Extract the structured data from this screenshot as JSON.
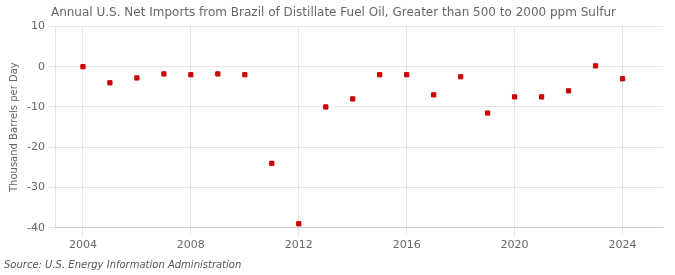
{
  "chart_data": {
    "type": "scatter",
    "title": "Annual U.S. Net Imports from Brazil of Distillate Fuel Oil, Greater than 500 to 2000 ppm Sulfur",
    "ylabel": "Thousand Barrels per Day",
    "source": "Source: U.S. Energy Information Administration",
    "x": [
      2004,
      2005,
      2006,
      2007,
      2008,
      2009,
      2010,
      2011,
      2012,
      2013,
      2014,
      2015,
      2016,
      2017,
      2018,
      2019,
      2020,
      2021,
      2022,
      2023,
      2024
    ],
    "values": [
      0.0,
      -4.0,
      -2.8,
      -1.8,
      -2.0,
      -1.8,
      -2.0,
      -24.0,
      -39.0,
      -10.0,
      -8.0,
      -2.0,
      -2.0,
      -7.0,
      -2.5,
      -11.5,
      -7.5,
      -7.5,
      -6.0,
      0.2,
      -3.0
    ],
    "color": "#cc0000",
    "marker": "square",
    "xlim": [
      2003.0,
      2025.5
    ],
    "xticks": [
      2004,
      2008,
      2012,
      2016,
      2020,
      2024
    ],
    "ylim": [
      -40,
      10
    ],
    "yticks": [
      -40,
      -30,
      -20,
      -10,
      0,
      10
    ],
    "grid": true
  }
}
